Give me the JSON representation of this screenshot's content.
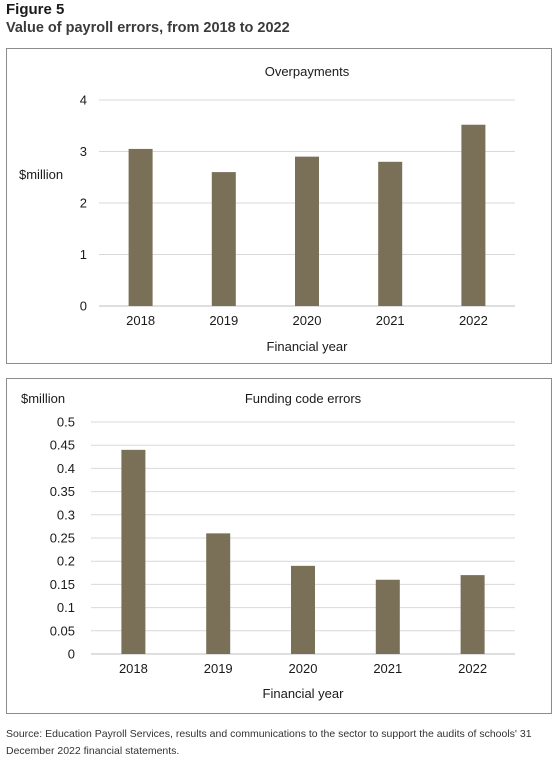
{
  "figure": {
    "label": "Figure 5",
    "title": "Value of payroll errors, from 2018 to 2022",
    "source": "Source: Education Payroll Services, results and communications to the sector to support the audits of schools' 31 December 2022 financial statements."
  },
  "colors": {
    "bar": "#7a7058",
    "grid": "#d9d9d9",
    "axis": "#bfbfbf"
  },
  "chart_data": [
    {
      "type": "bar",
      "title": "Overpayments",
      "ylabel": "$million",
      "xlabel": "Financial year",
      "categories": [
        "2018",
        "2019",
        "2020",
        "2021",
        "2022"
      ],
      "values": [
        3.05,
        2.6,
        2.9,
        2.8,
        3.52
      ],
      "ylim": [
        0,
        4
      ],
      "yticks": [
        "0",
        "1",
        "2",
        "3",
        "4"
      ],
      "grid": true,
      "legend": "none"
    },
    {
      "type": "bar",
      "title": "Funding code errors",
      "ylabel": "$million",
      "xlabel": "Financial year",
      "categories": [
        "2018",
        "2019",
        "2020",
        "2021",
        "2022"
      ],
      "values": [
        0.44,
        0.26,
        0.19,
        0.16,
        0.17
      ],
      "ylim": [
        0,
        0.5
      ],
      "yticks": [
        "0",
        "0.05",
        "0.1",
        "0.15",
        "0.2",
        "0.25",
        "0.3",
        "0.35",
        "0.4",
        "0.45",
        "0.5"
      ],
      "grid": true,
      "legend": "none"
    }
  ]
}
